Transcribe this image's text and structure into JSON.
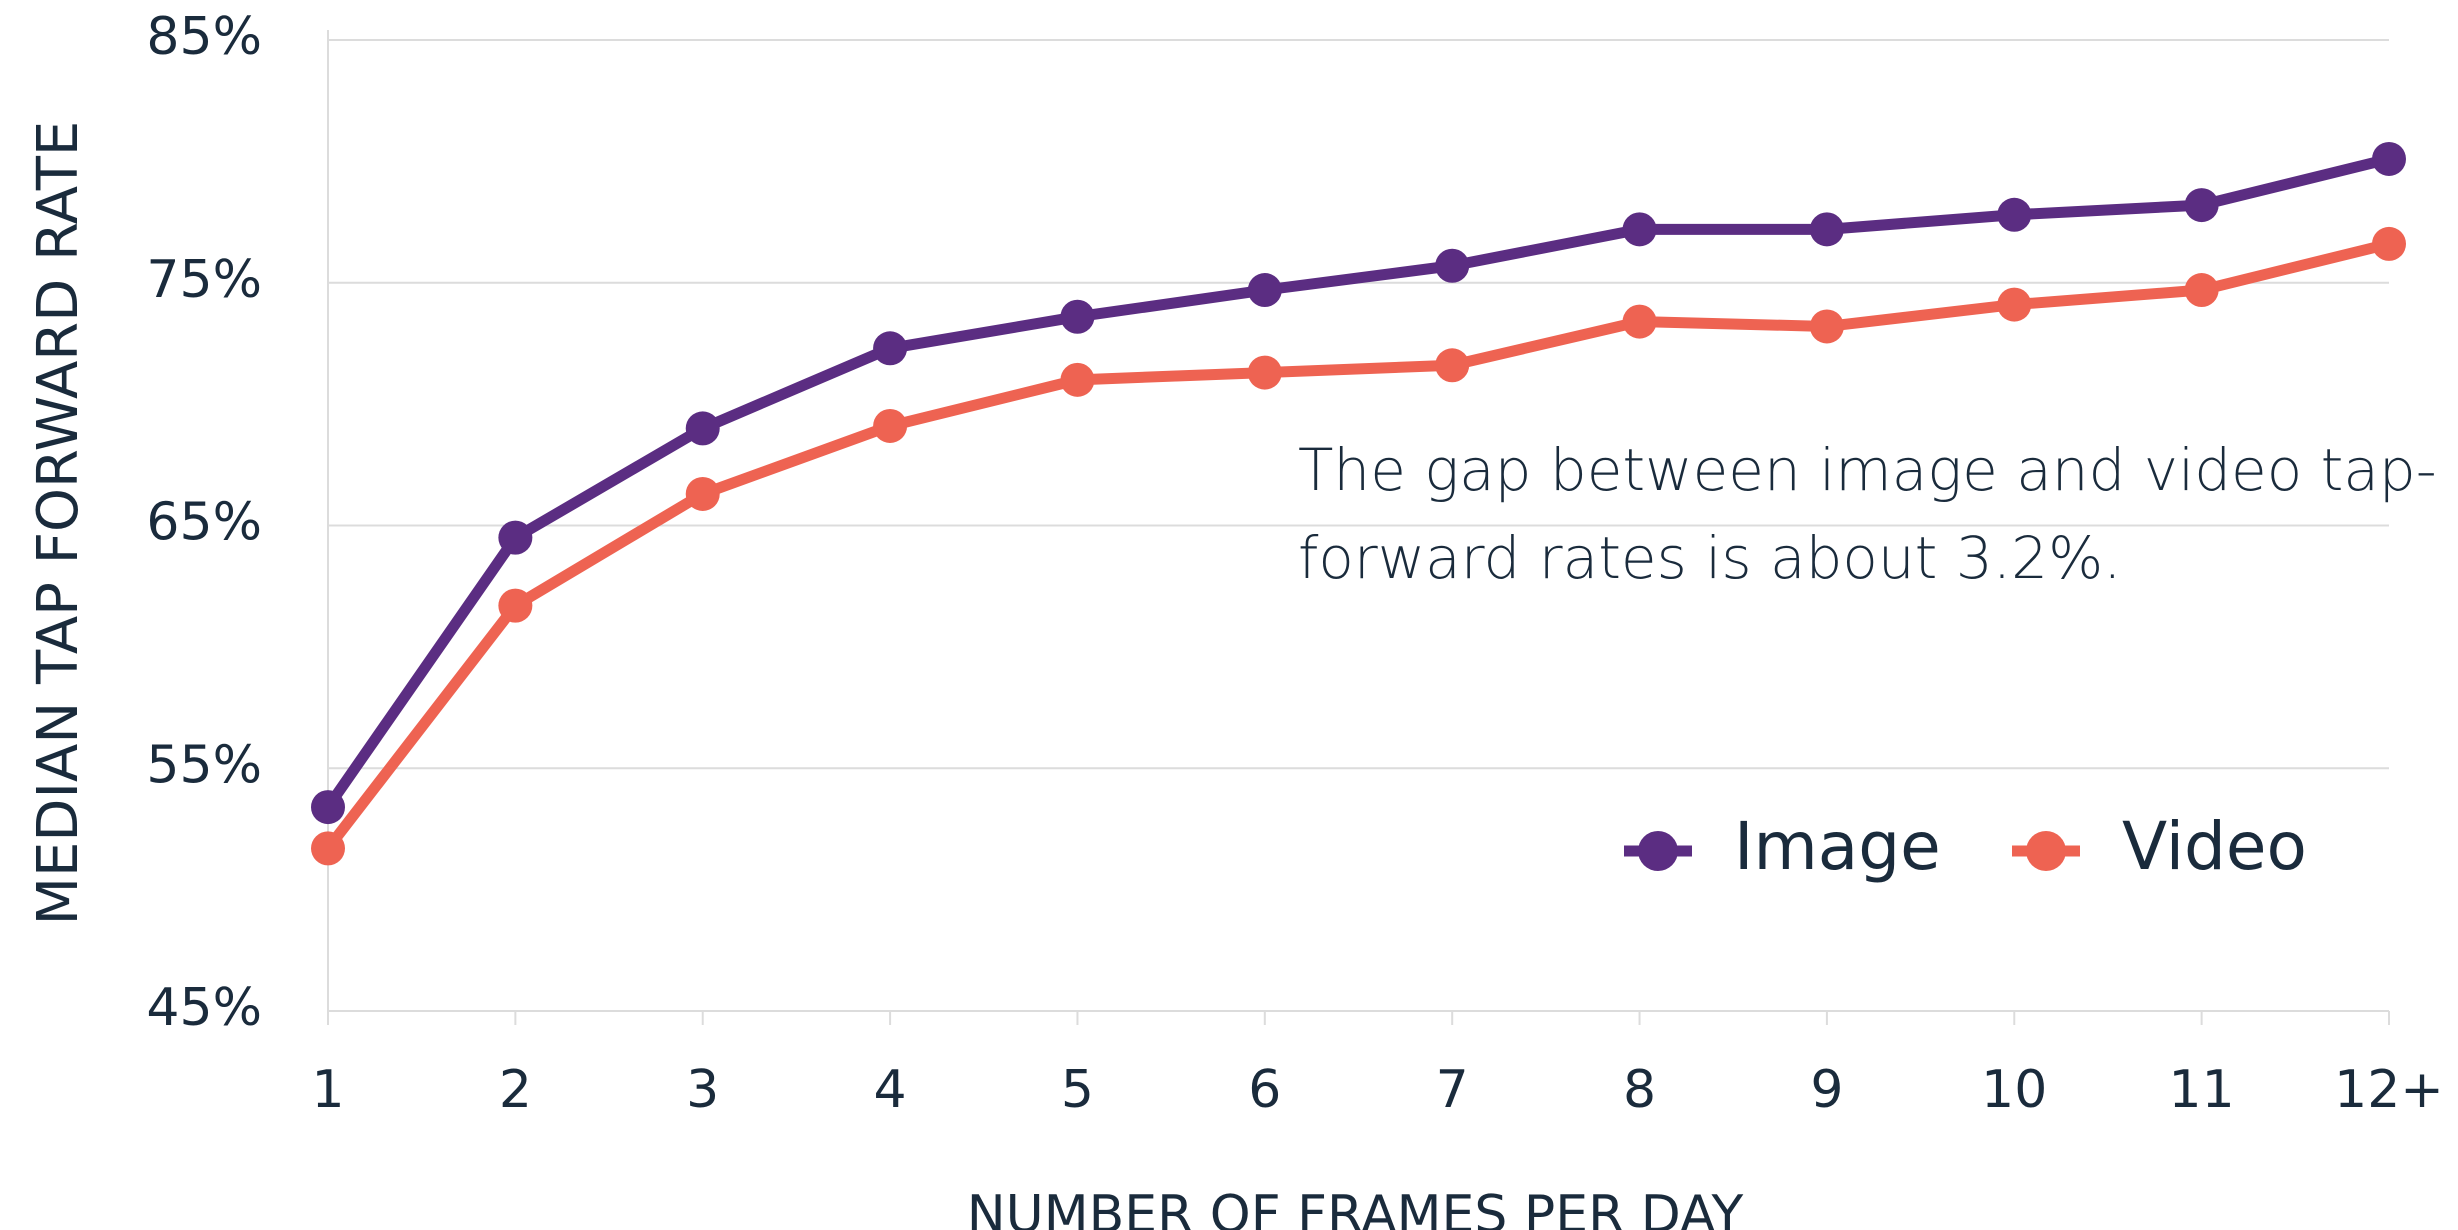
{
  "chart_data": {
    "type": "line",
    "xlabel": "NUMBER OF FRAMES PER DAY",
    "ylabel": "MEDIAN TAP FORWARD RATE",
    "annotation": [
      "The gap between image and video tap-",
      "forward rates is about 3.2%."
    ],
    "categories": [
      "1",
      "2",
      "3",
      "4",
      "5",
      "6",
      "7",
      "8",
      "9",
      "10",
      "11",
      "12+"
    ],
    "series": [
      {
        "name": "Image",
        "color": "#5b2d82",
        "values": [
          53.4,
          64.5,
          69.0,
          72.3,
          73.6,
          74.7,
          75.7,
          77.2,
          77.2,
          77.8,
          78.2,
          80.1
        ]
      },
      {
        "name": "Video",
        "color": "#ee6352",
        "values": [
          51.7,
          61.7,
          66.3,
          69.1,
          71.0,
          71.3,
          71.6,
          73.4,
          73.2,
          74.1,
          74.7,
          76.6
        ]
      }
    ],
    "ylim": [
      45,
      85
    ],
    "yticks": [
      {
        "value": 45,
        "label": "45%"
      },
      {
        "value": 55,
        "label": "55%"
      },
      {
        "value": 65,
        "label": "65%"
      },
      {
        "value": 75,
        "label": "75%"
      },
      {
        "value": 85,
        "label": "85%"
      }
    ],
    "grid": true,
    "legend": "lower right"
  }
}
